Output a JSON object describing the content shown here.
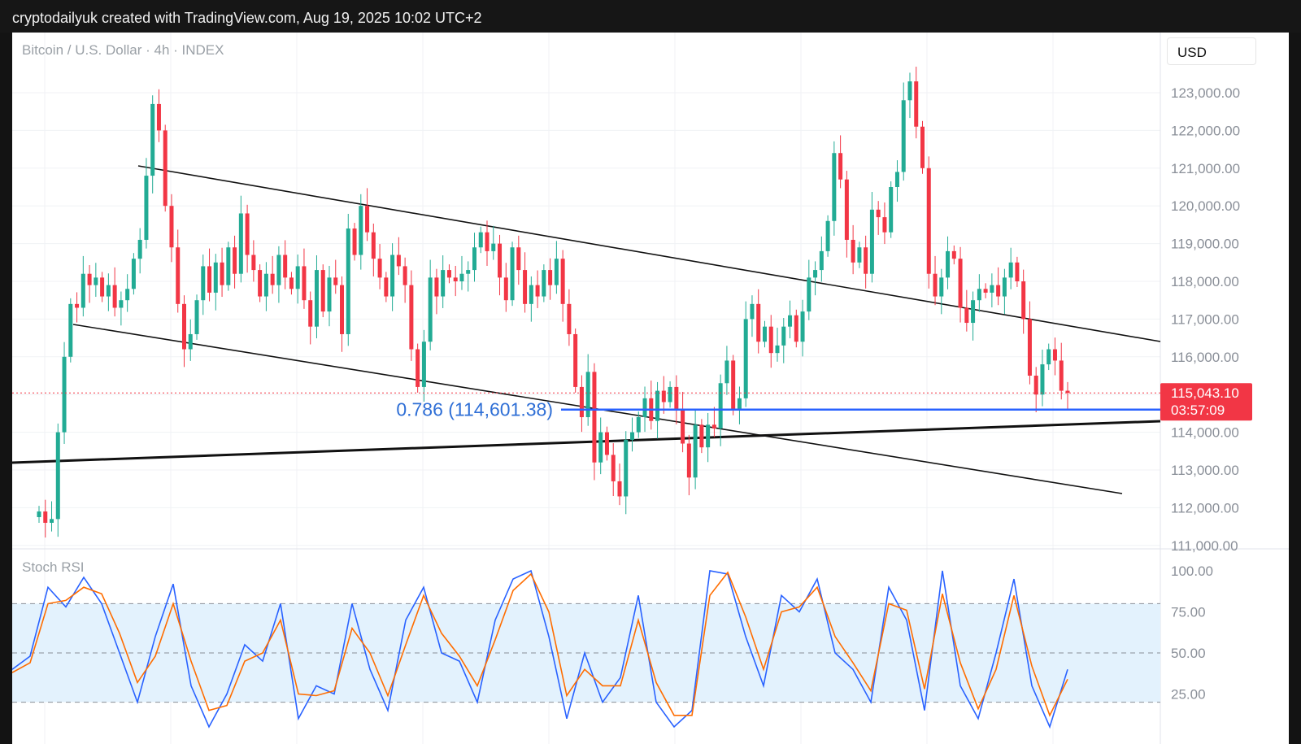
{
  "header": {
    "title": "cryptodailyuk created with TradingView.com, Aug 19, 2025 10:02 UTC+2"
  },
  "chart": {
    "symbol": "Bitcoin / U.S. Dollar · 4h · INDEX",
    "currency": "USD",
    "last_price": "115,043.10",
    "countdown": "03:57:09",
    "fib_label": "0.786 (114,601.38)",
    "indicator_name": "Stoch RSI"
  },
  "colors": {
    "up": "#22ab94",
    "down": "#f23645",
    "fib": "#2962ff",
    "k_line": "#2962ff",
    "d_line": "#ff6d00",
    "band": "#e3f2fd",
    "price_tag": "#f23645"
  },
  "chart_data": [
    {
      "type": "candlestick",
      "title": "Bitcoin / U.S. Dollar · 4h · INDEX",
      "ylabel": "USD",
      "ylim": [
        111000,
        124500
      ],
      "y_ticks": [
        111000,
        112000,
        113000,
        114000,
        115000,
        116000,
        117000,
        118000,
        119000,
        120000,
        121000,
        122000,
        123000
      ],
      "y_tick_labels": [
        "111,000.00",
        "112,000.00",
        "113,000.00",
        "114,000.00",
        "115,000.00",
        "116,000.00",
        "117,000.00",
        "118,000.00",
        "119,000.00",
        "120,000.00",
        "121,000.00",
        "122,000.00",
        "123,000.00"
      ],
      "last_close": 115043.1,
      "fib_level": {
        "ratio": 0.786,
        "price": 114601.38
      },
      "close_path": [
        111900,
        111600,
        111700,
        114000,
        116000,
        117400,
        117300,
        118200,
        117900,
        118100,
        117600,
        117900,
        117300,
        117500,
        117800,
        118600,
        119100,
        120800,
        122700,
        122000,
        120000,
        118900,
        117400,
        116200,
        116600,
        117500,
        118400,
        117700,
        118500,
        117900,
        118900,
        118200,
        119800,
        118700,
        118300,
        117600,
        118200,
        117900,
        118700,
        118100,
        117800,
        118400,
        117500,
        116800,
        118300,
        117200,
        118100,
        117900,
        116600,
        119400,
        118700,
        120000,
        119300,
        118600,
        118100,
        117600,
        118700,
        118400,
        117900,
        116200,
        115200,
        116400,
        118100,
        117600,
        118300,
        118100,
        118000,
        118200,
        118300,
        118900,
        119300,
        118800,
        119000,
        118100,
        117500,
        118900,
        118300,
        117400,
        117900,
        117600,
        118300,
        117900,
        118600,
        117400,
        116600,
        115200,
        114400,
        115600,
        113200,
        114000,
        113400,
        112700,
        112300,
        113800,
        114000,
        114400,
        114900,
        114300,
        115100,
        114800,
        115200,
        114600,
        113700,
        112800,
        114200,
        113600,
        114200,
        114100,
        115300,
        115900,
        114600,
        114900,
        117000,
        117400,
        116400,
        116800,
        116100,
        116300,
        116800,
        117100,
        116400,
        117200,
        118100,
        118300,
        118800,
        119600,
        121400,
        120700,
        119100,
        118500,
        118900,
        118200,
        119900,
        119700,
        119300,
        120500,
        120900,
        122800,
        123300,
        122100,
        121000,
        118200,
        117600,
        118100,
        118800,
        118600,
        117300,
        116900,
        117500,
        117800,
        117700,
        117900,
        117600,
        118100,
        118500,
        118000,
        117000,
        115500,
        115000,
        115800,
        116200,
        115900,
        115100,
        115043
      ]
    },
    {
      "type": "line",
      "title": "Stoch RSI",
      "ylim": [
        0,
        100
      ],
      "y_ticks": [
        25,
        50,
        75,
        100
      ],
      "y_tick_labels": [
        "25.00",
        "50.00",
        "75.00",
        "100.00"
      ],
      "bands": [
        20,
        50,
        80
      ],
      "series": [
        {
          "values": [
            40,
            48,
            90,
            78,
            96,
            80,
            50,
            20,
            60,
            92,
            30,
            5,
            25,
            55,
            45,
            80,
            10,
            30,
            25,
            80,
            40,
            15,
            70,
            90,
            50,
            45,
            20,
            70,
            95,
            100,
            60,
            10,
            50,
            20,
            35,
            85,
            20,
            5,
            15,
            100,
            98,
            60,
            30,
            85,
            75,
            95,
            50,
            40,
            20,
            90,
            70,
            15,
            100,
            30,
            10,
            50,
            95,
            30,
            5,
            40
          ]
        },
        {
          "values": [
            38,
            44,
            80,
            82,
            90,
            86,
            62,
            32,
            48,
            80,
            45,
            15,
            18,
            45,
            50,
            70,
            25,
            24,
            27,
            65,
            50,
            24,
            55,
            85,
            62,
            48,
            30,
            58,
            88,
            98,
            75,
            24,
            40,
            30,
            30,
            70,
            32,
            12,
            12,
            85,
            99,
            72,
            40,
            75,
            78,
            90,
            60,
            44,
            27,
            80,
            76,
            28,
            86,
            44,
            16,
            40,
            85,
            42,
            12,
            34
          ]
        }
      ]
    }
  ]
}
